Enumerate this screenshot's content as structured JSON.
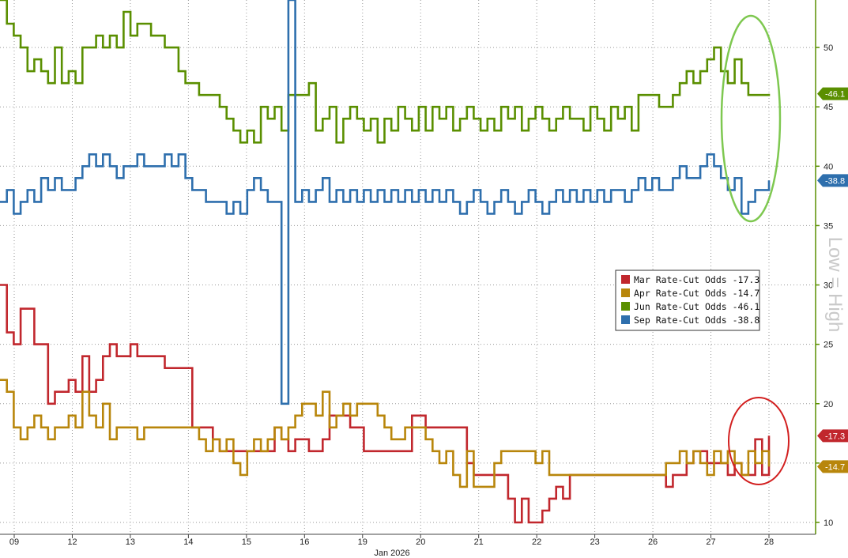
{
  "chart_data": {
    "type": "line",
    "xlabel": "Jan 2026",
    "x_ticks": [
      "09",
      "12",
      "13",
      "14",
      "15",
      "16",
      "19",
      "20",
      "21",
      "22",
      "23",
      "26",
      "27",
      "28"
    ],
    "y_ticks": [
      10,
      15,
      20,
      25,
      30,
      35,
      40,
      45,
      50
    ],
    "ylim": [
      9,
      54
    ],
    "axis_note": "Low = High",
    "grid": true,
    "legend_position": "right",
    "series": [
      {
        "name": "Mar Rate-Cut Odds",
        "last": "17.3",
        "color": "#c1272d",
        "values": [
          30,
          26,
          25,
          28,
          28,
          25,
          25,
          20,
          21,
          21,
          22,
          21,
          24,
          21,
          22,
          24,
          25,
          24,
          24,
          25,
          24,
          24,
          24,
          24,
          23,
          23,
          23,
          23,
          18,
          18,
          18,
          17,
          16,
          16,
          16,
          16,
          16,
          16,
          16,
          16,
          18,
          17,
          16,
          17,
          17,
          16,
          16,
          17,
          19,
          19,
          19,
          18,
          18,
          16,
          16,
          16,
          16,
          16,
          16,
          16,
          19,
          19,
          18,
          18,
          18,
          18,
          18,
          18,
          15,
          14,
          14,
          14,
          14,
          14,
          12,
          10,
          12,
          10,
          10,
          11,
          12,
          13,
          12,
          14,
          14,
          14,
          14,
          14,
          14,
          14,
          14,
          14,
          14,
          14,
          14,
          14,
          14,
          13,
          14,
          14,
          15,
          16,
          16,
          15,
          15,
          15,
          14,
          15,
          14,
          14,
          17,
          14,
          17.3
        ]
      },
      {
        "name": "Apr Rate-Cut Odds",
        "last": "14.7",
        "color": "#b8860b",
        "values": [
          22,
          21,
          18,
          17,
          18,
          19,
          18,
          17,
          18,
          18,
          19,
          18,
          21,
          19,
          18,
          20,
          17,
          18,
          18,
          18,
          17,
          18,
          18,
          18,
          18,
          18,
          18,
          18,
          18,
          17,
          16,
          17,
          16,
          17,
          15,
          14,
          16,
          17,
          16,
          17,
          18,
          17,
          18,
          19,
          20,
          20,
          19,
          21,
          18,
          19,
          20,
          19,
          20,
          20,
          20,
          19,
          18,
          17,
          17,
          18,
          18,
          18,
          17,
          16,
          15,
          16,
          14,
          13,
          16,
          13,
          13,
          13,
          15,
          16,
          16,
          16,
          16,
          16,
          15,
          16,
          14,
          14,
          14,
          14,
          14,
          14,
          14,
          14,
          14,
          14,
          14,
          14,
          14,
          14,
          14,
          14,
          14,
          15,
          15,
          16,
          15,
          16,
          15,
          14,
          16,
          15,
          16,
          15,
          14,
          16,
          15,
          16,
          14.7
        ]
      },
      {
        "name": "Jun Rate-Cut Odds",
        "last": "46.1",
        "color": "#5a8f00",
        "values": [
          54,
          52,
          51,
          50,
          48,
          49,
          48,
          47,
          50,
          47,
          48,
          47,
          50,
          50,
          51,
          50,
          51,
          50,
          53,
          51,
          52,
          52,
          51,
          51,
          50,
          50,
          48,
          47,
          47,
          46,
          46,
          46,
          45,
          44,
          43,
          42,
          43,
          42,
          45,
          44,
          45,
          43,
          46,
          46,
          46,
          47,
          43,
          44,
          45,
          42,
          44,
          45,
          44,
          43,
          44,
          42,
          44,
          43,
          45,
          44,
          43,
          45,
          43,
          45,
          44,
          45,
          43,
          44,
          45,
          44,
          43,
          44,
          43,
          45,
          44,
          45,
          43,
          44,
          45,
          44,
          43,
          44,
          45,
          44,
          44,
          43,
          45,
          44,
          43,
          45,
          44,
          45,
          43,
          46,
          46,
          46,
          45,
          45,
          46,
          47,
          48,
          47,
          48,
          49,
          50,
          48,
          47,
          49,
          47,
          46,
          46,
          46,
          46.1
        ]
      },
      {
        "name": "Sep Rate-Cut Odds",
        "last": "38.8",
        "color": "#2e6fad",
        "values": [
          37,
          38,
          36,
          37,
          38,
          37,
          39,
          38,
          39,
          38,
          38,
          39,
          40,
          41,
          40,
          41,
          40,
          39,
          40,
          40,
          41,
          40,
          40,
          40,
          41,
          40,
          41,
          39,
          38,
          38,
          37,
          37,
          37,
          36,
          37,
          36,
          38,
          39,
          38,
          37,
          37,
          20,
          54,
          37,
          38,
          37,
          38,
          39,
          37,
          38,
          37,
          38,
          37,
          38,
          37,
          38,
          37,
          38,
          37,
          38,
          37,
          38,
          37,
          38,
          37,
          38,
          37,
          36,
          37,
          38,
          37,
          36,
          37,
          38,
          37,
          36,
          37,
          38,
          37,
          36,
          37,
          38,
          37,
          38,
          37,
          38,
          37,
          38,
          37,
          38,
          38,
          37,
          38,
          39,
          38,
          39,
          38,
          38,
          39,
          40,
          39,
          39,
          40,
          41,
          40,
          39,
          38,
          39,
          36,
          37,
          38,
          38,
          38.8
        ]
      }
    ]
  },
  "annotations": {
    "top_right_ellipse_color": "#7ec850",
    "bottom_right_ellipse_color": "#d21f1f"
  }
}
